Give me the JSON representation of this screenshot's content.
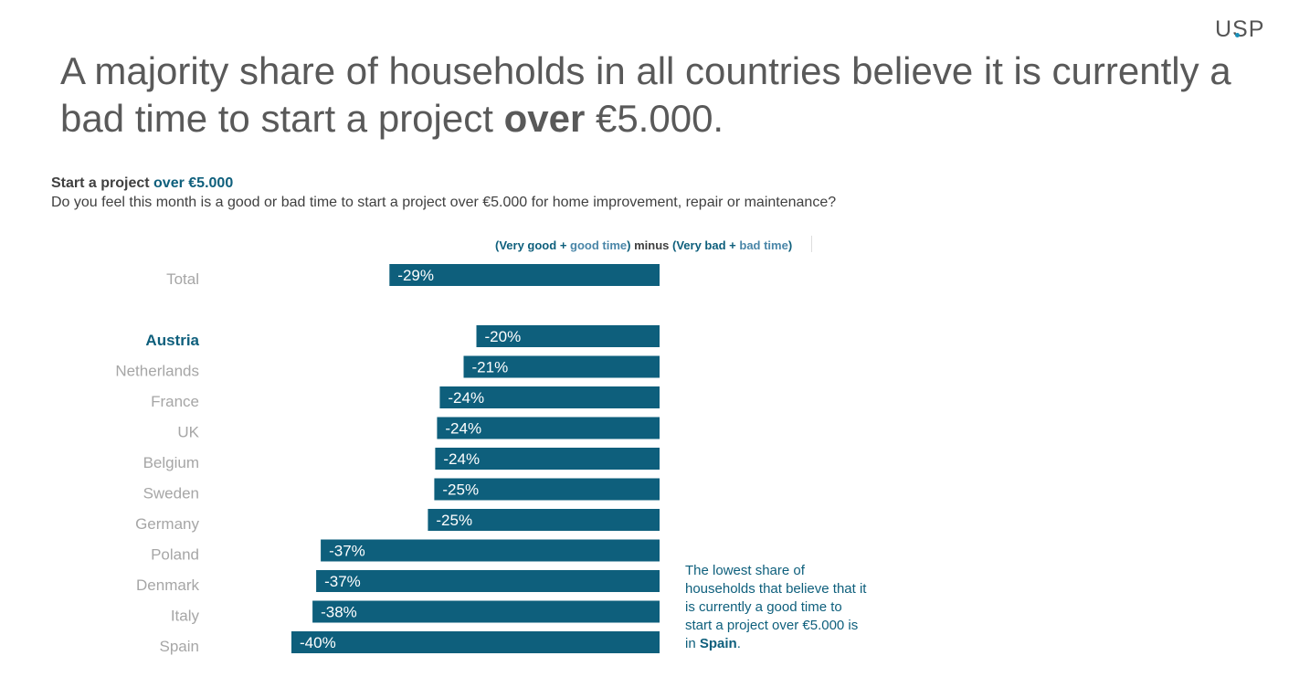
{
  "brand": {
    "logo_text": "USP"
  },
  "title": {
    "before": "A majority share of households in all countries believe it is currently a bad time to start a project ",
    "bold": "over",
    "after": " €5.000."
  },
  "chart_heading": {
    "prefix": "Start a project ",
    "accent": "over €5.000"
  },
  "chart_question": "Do you feel this month is a good or bad time to start a project over €5.000 for home improvement, repair or maintenance?",
  "metric_label": {
    "open": "(",
    "a": "Very good",
    "plus1": " + ",
    "b": "good time",
    "close_minus": ") minus (",
    "c": "Very bad",
    "plus2": " + ",
    "d": "bad time",
    "close": ")"
  },
  "note": {
    "text": "The lowest share of households that believe that it is currently a good time to start a project over €5.000 is in ",
    "bold": "Spain",
    "end": "."
  },
  "colors": {
    "bar": "#0e5f7c",
    "bar_label": "#ffffff",
    "category_label": "#a6a6a6",
    "highlight_label": "#0e5f7c"
  },
  "chart_data": {
    "type": "bar",
    "orientation": "horizontal",
    "categories": [
      "Total",
      "Austria",
      "Netherlands",
      "France",
      "UK",
      "Belgium",
      "Sweden",
      "Germany",
      "Poland",
      "Denmark",
      "Italy",
      "Spain"
    ],
    "values": [
      -29.5,
      -20,
      -21.4,
      -24,
      -24.3,
      -24.5,
      -24.6,
      -25.3,
      -37,
      -37.5,
      -37.9,
      -40.2
    ],
    "data_labels": [
      "-29%",
      "-20%",
      "-21%",
      "-24%",
      "-24%",
      "-24%",
      "-25%",
      "-25%",
      "-37%",
      "-37%",
      "-38%",
      "-40%"
    ],
    "highlight": "Austria",
    "unit": "%",
    "xlim": [
      -40.2,
      0
    ],
    "grid": false,
    "legend": "none"
  }
}
